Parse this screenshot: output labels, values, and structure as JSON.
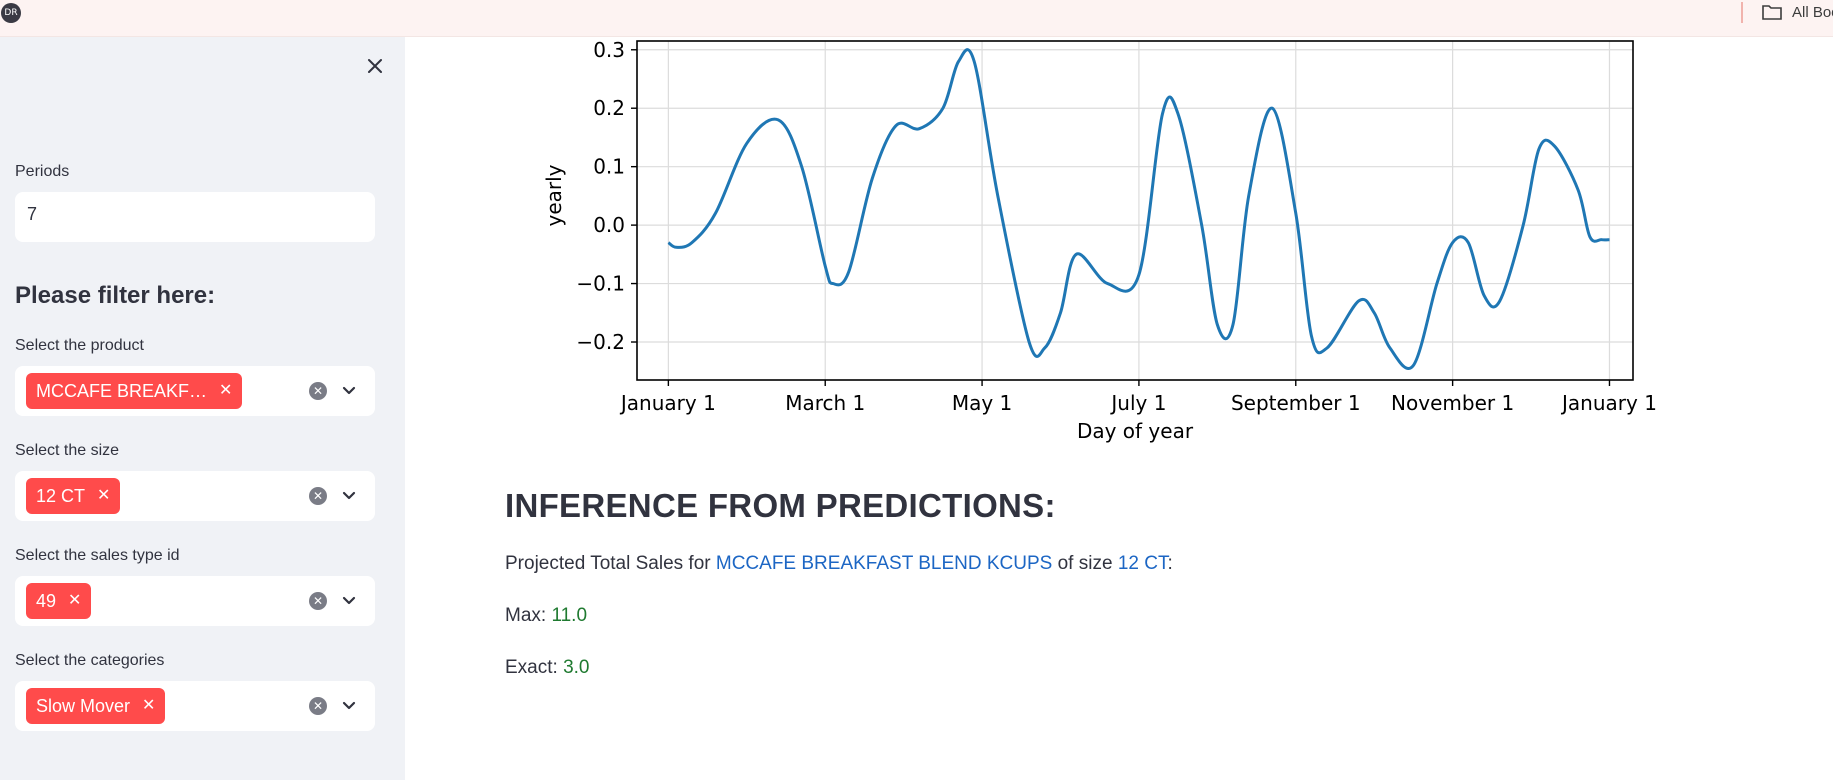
{
  "browser": {
    "logo_text": "DR",
    "bookmarks_label": "All Boo"
  },
  "sidebar": {
    "periods_label": "Periods",
    "periods_value": "7",
    "filter_heading": "Please filter here:",
    "filters": [
      {
        "label": "Select the product",
        "tag": "MCCAFE BREAKF…"
      },
      {
        "label": "Select the size",
        "tag": "12 CT"
      },
      {
        "label": "Select the sales type id",
        "tag": "49"
      },
      {
        "label": "Select the categories",
        "tag": "Slow Mover"
      }
    ]
  },
  "chart_data": {
    "type": "line",
    "xlabel": "Day of year",
    "ylabel": "yearly",
    "x_tick_labels": [
      "January 1",
      "March 1",
      "May 1",
      "July 1",
      "September 1",
      "November 1",
      "January 1"
    ],
    "y_tick_labels": [
      "0.3",
      "0.2",
      "0.1",
      "0.0",
      "−0.1",
      "−0.2"
    ],
    "ylim": [
      -0.265,
      0.315
    ],
    "grid": true,
    "color": "#1f77b4",
    "x_month_positions": [
      0,
      2,
      4,
      6,
      8,
      10,
      12
    ],
    "xlim": [
      -0.4,
      12.3
    ],
    "series": [
      {
        "x": [
          0.0,
          0.1,
          0.3,
          0.6,
          1.0,
          1.4,
          1.7,
          2.0,
          2.1,
          2.3,
          2.6,
          2.9,
          3.2,
          3.5,
          3.7,
          3.9,
          4.2,
          4.6,
          4.8,
          5.0,
          5.2,
          5.6,
          6.0,
          6.3,
          6.5,
          6.8,
          7.0,
          7.2,
          7.4,
          7.7,
          8.0,
          8.2,
          8.4,
          8.8,
          9.0,
          9.2,
          9.5,
          9.8,
          10.0,
          10.2,
          10.4,
          10.6,
          10.9,
          11.1,
          11.3,
          11.6,
          11.75,
          11.9,
          12.0
        ],
        "y": [
          -0.03,
          -0.038,
          -0.03,
          0.02,
          0.14,
          0.18,
          0.1,
          -0.07,
          -0.1,
          -0.08,
          0.08,
          0.17,
          0.165,
          0.2,
          0.28,
          0.28,
          0.05,
          -0.2,
          -0.21,
          -0.15,
          -0.05,
          -0.1,
          -0.085,
          0.19,
          0.19,
          0.0,
          -0.17,
          -0.17,
          0.05,
          0.2,
          0.02,
          -0.19,
          -0.21,
          -0.13,
          -0.15,
          -0.21,
          -0.24,
          -0.1,
          -0.03,
          -0.03,
          -0.12,
          -0.13,
          0.0,
          0.13,
          0.135,
          0.06,
          -0.02,
          -0.025,
          -0.025
        ]
      }
    ]
  },
  "inference": {
    "title": "INFERENCE FROM PREDICTIONS:",
    "line_prefix": "Projected Total Sales for ",
    "product": "MCCAFE BREAKFAST BLEND KCUPS",
    "of_size": " of size ",
    "size": "12 CT",
    "colon": ":",
    "max_label": "Max: ",
    "max_value": "11.0",
    "exact_label": "Exact: ",
    "exact_value": "3.0"
  }
}
